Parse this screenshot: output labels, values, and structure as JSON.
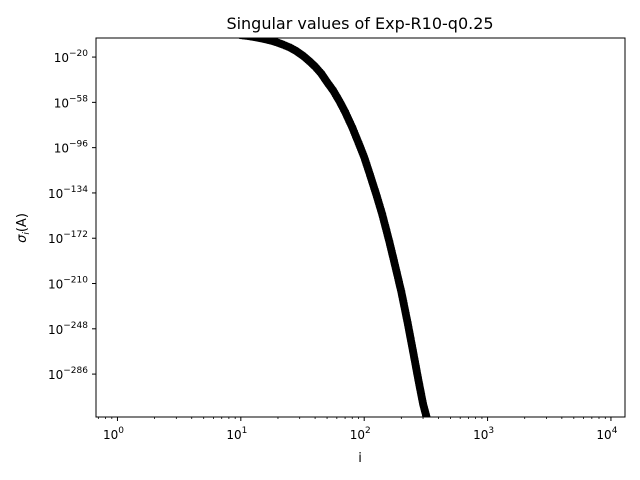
{
  "chart_data": {
    "type": "line",
    "title": "Singular values of Exp-R10-q0.25",
    "xlabel": "i",
    "ylabel": "σ_i(A)",
    "ylabel_base": "σ",
    "ylabel_sub": "i",
    "ylabel_suffix": "(A)",
    "x_scale": "log",
    "y_scale": "log",
    "xlim": [
      0.67,
      13000
    ],
    "ylim_log10": [
      -322,
      -4
    ],
    "x_ticks": [
      {
        "value": 1,
        "base": "10",
        "exp": "0"
      },
      {
        "value": 10,
        "base": "10",
        "exp": "1"
      },
      {
        "value": 100,
        "base": "10",
        "exp": "2"
      },
      {
        "value": 1000,
        "base": "10",
        "exp": "3"
      },
      {
        "value": 10000,
        "base": "10",
        "exp": "4"
      }
    ],
    "y_ticks": [
      {
        "log10": -20,
        "base": "10",
        "exp": "−20"
      },
      {
        "log10": -58,
        "base": "10",
        "exp": "−58"
      },
      {
        "log10": -96,
        "base": "10",
        "exp": "−96"
      },
      {
        "log10": -134,
        "base": "10",
        "exp": "−134"
      },
      {
        "log10": -172,
        "base": "10",
        "exp": "−172"
      },
      {
        "log10": -210,
        "base": "10",
        "exp": "−210"
      },
      {
        "log10": -248,
        "base": "10",
        "exp": "−248"
      },
      {
        "log10": -286,
        "base": "10",
        "exp": "−286"
      }
    ],
    "grid": false,
    "series": [
      {
        "color": "#000000",
        "marker": "circle",
        "points_log10": [
          [
            1,
            -1
          ],
          [
            2,
            -1
          ],
          [
            3,
            -1
          ],
          [
            4,
            -1
          ],
          [
            5,
            -1
          ],
          [
            6,
            -1
          ],
          [
            7,
            -1
          ],
          [
            8,
            -1
          ],
          [
            9,
            -1
          ],
          [
            10,
            -1.6
          ],
          [
            11,
            -2.1
          ],
          [
            12,
            -2.7
          ],
          [
            13,
            -3.3
          ],
          [
            14,
            -3.9
          ],
          [
            15,
            -4.5
          ],
          [
            16,
            -5.2
          ],
          [
            18,
            -6.5
          ],
          [
            20,
            -8
          ],
          [
            22,
            -9.6
          ],
          [
            25,
            -12
          ],
          [
            28,
            -14.8
          ],
          [
            32,
            -19
          ],
          [
            36,
            -23.5
          ],
          [
            40,
            -28
          ],
          [
            45,
            -34
          ],
          [
            50,
            -41
          ],
          [
            56,
            -48
          ],
          [
            63,
            -57
          ],
          [
            70,
            -66
          ],
          [
            80,
            -79
          ],
          [
            90,
            -92
          ],
          [
            100,
            -104
          ],
          [
            110,
            -117
          ],
          [
            125,
            -135
          ],
          [
            140,
            -152
          ],
          [
            160,
            -175
          ],
          [
            180,
            -197
          ],
          [
            200,
            -217
          ],
          [
            225,
            -243
          ],
          [
            250,
            -268
          ],
          [
            275,
            -291
          ],
          [
            300,
            -311
          ],
          [
            320,
            -322
          ]
        ]
      }
    ]
  }
}
